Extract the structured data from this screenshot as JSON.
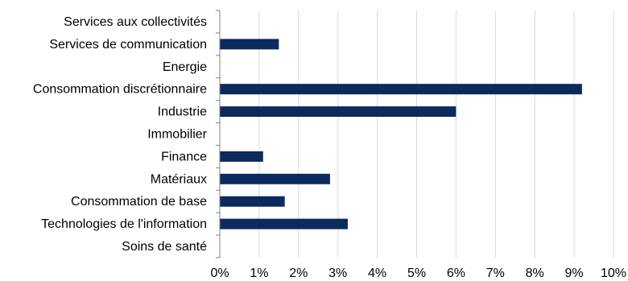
{
  "chart_data": {
    "type": "bar",
    "orientation": "horizontal",
    "categories": [
      "Services aux collectivités",
      "Services de communication",
      "Energie",
      "Consommation discrétionnaire",
      "Industrie",
      "Immobilier",
      "Finance",
      "Matériaux",
      "Consommation de base",
      "Technologies de l'information",
      "Soins de santé"
    ],
    "values": [
      0,
      1.5,
      0,
      9.2,
      6.0,
      0,
      1.1,
      2.8,
      1.65,
      3.25,
      0
    ],
    "xlim": [
      0,
      10
    ],
    "xticks": [
      "0%",
      "1%",
      "2%",
      "3%",
      "4%",
      "5%",
      "6%",
      "7%",
      "8%",
      "9%",
      "10%"
    ],
    "bar_color": "#0d2a5e",
    "grid": "vertical",
    "title": "",
    "xlabel": "",
    "ylabel": ""
  }
}
